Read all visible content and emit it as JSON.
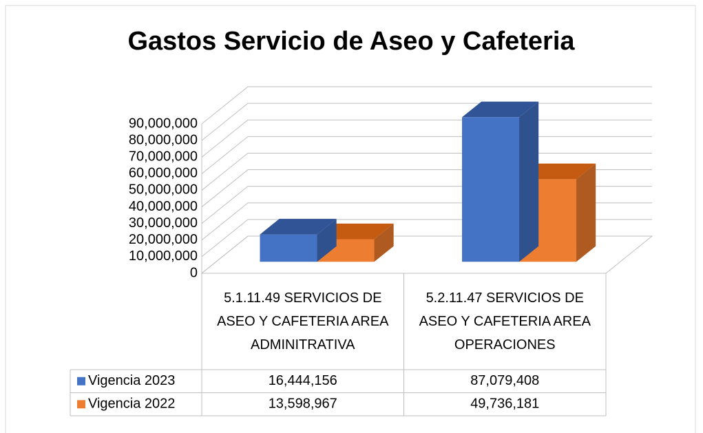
{
  "chart_data": {
    "type": "bar3d",
    "title": "Gastos Servicio de Aseo y Cafeteria",
    "categories": [
      "5.1.11.49 SERVICIOS DE ASEO Y CAFETERIA AREA ADMINITRATIVA",
      "5.2.11.47 SERVICIOS DE ASEO Y CAFETERIA AREA OPERACIONES"
    ],
    "series": [
      {
        "name": "Vigencia 2023",
        "color": "#4472c4",
        "side": "#2f528f",
        "top": "#305496",
        "values": [
          16444156,
          87079408
        ],
        "value_labels": [
          "16,444,156",
          "87,079,408"
        ]
      },
      {
        "name": "Vigencia 2022",
        "color": "#ed7d31",
        "side": "#ae5a21",
        "top": "#c55a11",
        "values": [
          13598967,
          49736181
        ],
        "value_labels": [
          "13,598,967",
          "49,736,181"
        ]
      }
    ],
    "ylim": [
      0,
      90000000
    ],
    "yticks": [
      0,
      {
        "value": 10000000,
        "label": "10,000,000"
      },
      {
        "value": 20000000,
        "label": "20,000,000"
      },
      {
        "value": 30000000,
        "label": "30,000,000"
      },
      {
        "value": 40000000,
        "label": "40,000,000"
      },
      {
        "value": 50000000,
        "label": "50,000,000"
      },
      {
        "value": 60000000,
        "label": "60,000,000"
      },
      {
        "value": 70000000,
        "label": "70,000,000"
      },
      {
        "value": 80000000,
        "label": "80,000,000"
      },
      {
        "value": 90000000,
        "label": "90,000,000"
      }
    ],
    "grid": true,
    "legend": "table"
  }
}
